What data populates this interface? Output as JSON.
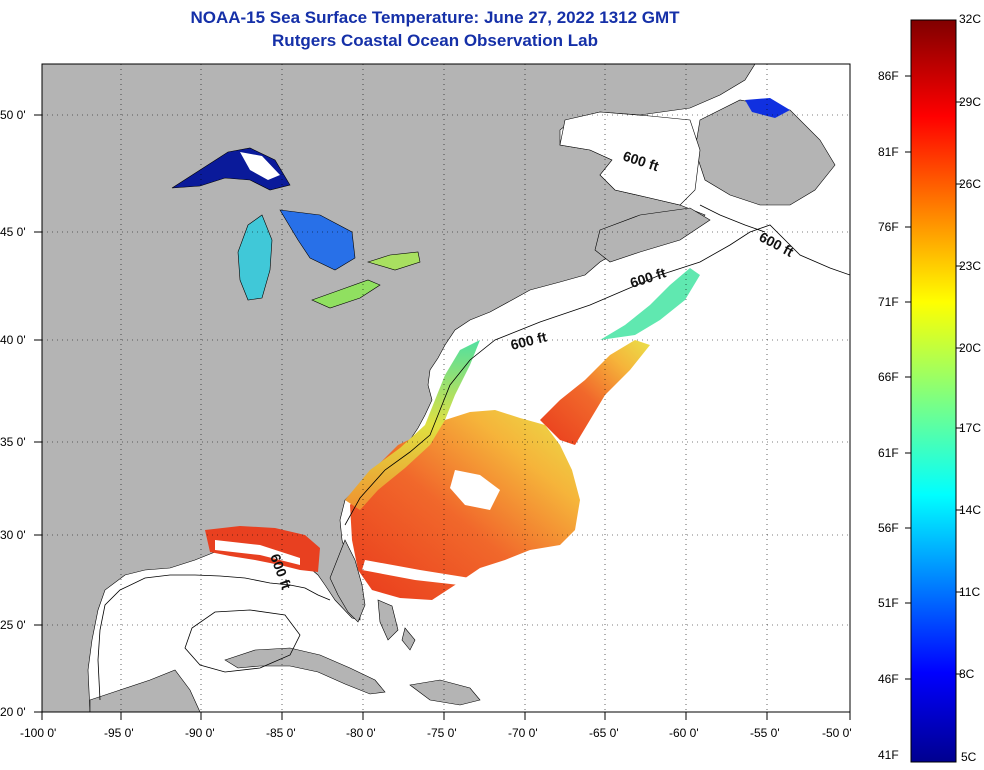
{
  "header": {
    "title": "NOAA-15 Sea Surface Temperature:  June 27, 2022 1312 GMT",
    "subtitle": "Rutgers Coastal Ocean Observation Lab"
  },
  "map": {
    "lon_ticks": [
      "-100 0'",
      "-95 0'",
      "-90 0'",
      "-85 0'",
      "-80 0'",
      "-75 0'",
      "-70 0'",
      "-65 0'",
      "-60 0'",
      "-55 0'",
      "-50 0'"
    ],
    "lat_ticks": [
      "50 0'",
      "45 0'",
      "40 0'",
      "35 0'",
      "30 0'",
      "25 0'",
      "20 0'"
    ],
    "contour_label": "600 ft",
    "land_color": "#b4b4b4",
    "ocean_color": "#ffffff"
  },
  "colorbar": {
    "celsius_labels": [
      "32C",
      "29C",
      "26C",
      "23C",
      "20C",
      "17C",
      "14C",
      "11C",
      "8C",
      "5C"
    ],
    "fahrenheit_labels": [
      "86F",
      "81F",
      "76F",
      "71F",
      "66F",
      "61F",
      "56F",
      "51F",
      "46F",
      "41F"
    ]
  }
}
